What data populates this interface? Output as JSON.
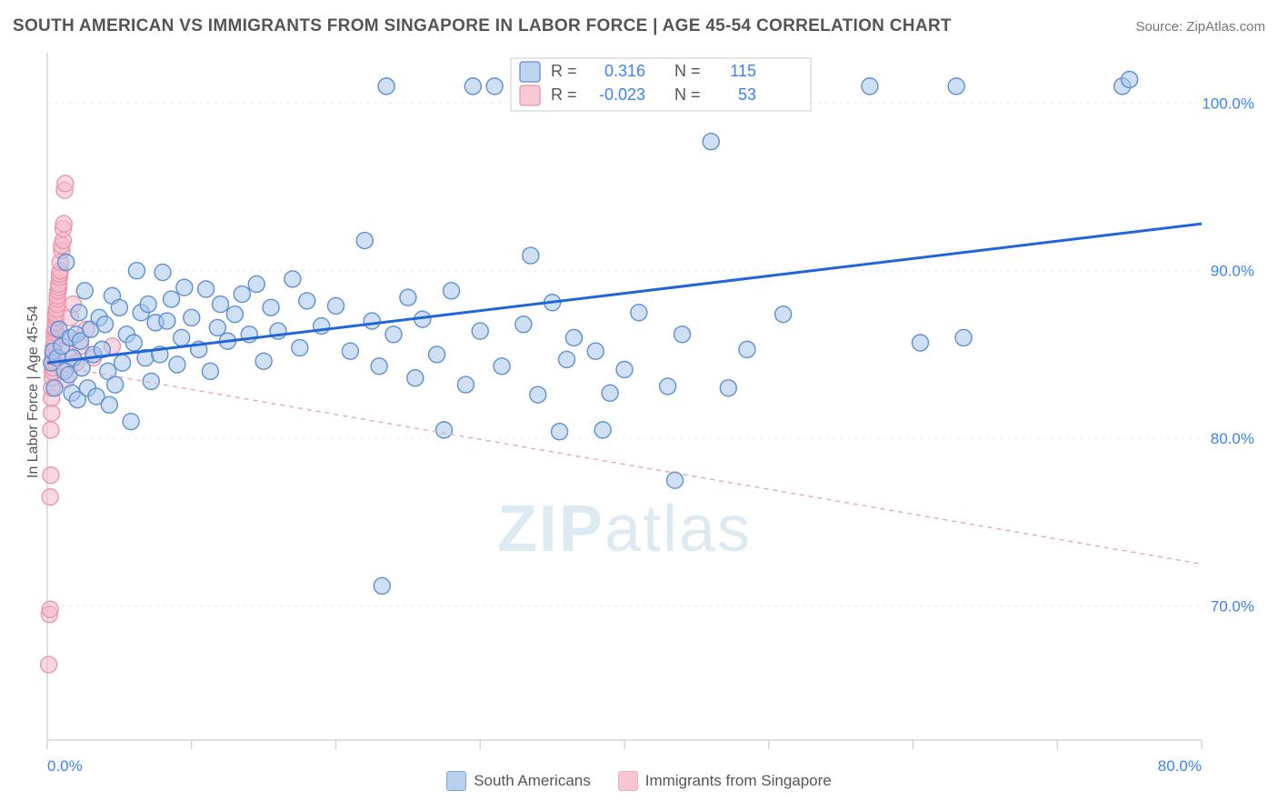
{
  "title": "SOUTH AMERICAN VS IMMIGRANTS FROM SINGAPORE IN LABOR FORCE | AGE 45-54 CORRELATION CHART",
  "source": "Source: ZipAtlas.com",
  "y_axis_label": "In Labor Force | Age 45-54",
  "watermark": "ZIPatlas",
  "chart": {
    "type": "scatter-with-regression",
    "background_color": "#ffffff",
    "grid_color": "#e8e8e8",
    "grid_dash": "3,5",
    "border_color": "#cccccc",
    "xlim": [
      0,
      80
    ],
    "ylim": [
      62,
      103
    ],
    "x_ticks": [
      0,
      10,
      20,
      30,
      40,
      50,
      60,
      70,
      80
    ],
    "x_tick_labels": {
      "0": "0.0%",
      "80": "80.0%"
    },
    "x_tick_color": "#3b82f6",
    "y_ticks": [
      70,
      80,
      90,
      100
    ],
    "y_tick_labels": {
      "70": "70.0%",
      "80": "80.0%",
      "90": "90.0%",
      "100": "100.0%"
    },
    "y_tick_color": "#3b82f6",
    "tick_fontsize": 17,
    "marker_radius": 9,
    "marker_stroke_width": 1.4,
    "series": [
      {
        "id": "south_americans",
        "label": "South Americans",
        "fill": "#a8c6ec",
        "fill_opacity": 0.55,
        "stroke": "#5d8fd3",
        "R": "0.316",
        "N": "115",
        "regression": {
          "x1": 0,
          "y1": 84.5,
          "x2": 80,
          "y2": 92.8,
          "stroke": "#2066d8",
          "width": 3,
          "dash": ""
        },
        "points": [
          [
            0.3,
            84.5
          ],
          [
            0.4,
            85.2
          ],
          [
            0.5,
            83
          ],
          [
            0.7,
            84.8
          ],
          [
            0.8,
            86.5
          ],
          [
            1,
            85.5
          ],
          [
            1.2,
            84
          ],
          [
            1.3,
            90.5
          ],
          [
            1.5,
            83.8
          ],
          [
            1.6,
            86
          ],
          [
            1.7,
            82.7
          ],
          [
            1.8,
            84.8
          ],
          [
            2,
            86.2
          ],
          [
            2.1,
            82.3
          ],
          [
            2.2,
            87.5
          ],
          [
            2.3,
            85.8
          ],
          [
            2.4,
            84.2
          ],
          [
            2.6,
            88.8
          ],
          [
            2.8,
            83
          ],
          [
            3,
            86.5
          ],
          [
            3.2,
            85
          ],
          [
            3.4,
            82.5
          ],
          [
            3.6,
            87.2
          ],
          [
            3.8,
            85.3
          ],
          [
            4,
            86.8
          ],
          [
            4.2,
            84
          ],
          [
            4.3,
            82
          ],
          [
            4.5,
            88.5
          ],
          [
            4.7,
            83.2
          ],
          [
            5,
            87.8
          ],
          [
            5.2,
            84.5
          ],
          [
            5.5,
            86.2
          ],
          [
            5.8,
            81
          ],
          [
            6,
            85.7
          ],
          [
            6.2,
            90
          ],
          [
            6.5,
            87.5
          ],
          [
            6.8,
            84.8
          ],
          [
            7,
            88
          ],
          [
            7.2,
            83.4
          ],
          [
            7.5,
            86.9
          ],
          [
            7.8,
            85
          ],
          [
            8,
            89.9
          ],
          [
            8.3,
            87
          ],
          [
            8.6,
            88.3
          ],
          [
            9,
            84.4
          ],
          [
            9.3,
            86
          ],
          [
            9.5,
            89
          ],
          [
            10,
            87.2
          ],
          [
            10.5,
            85.3
          ],
          [
            11,
            88.9
          ],
          [
            11.3,
            84.0
          ],
          [
            11.8,
            86.6
          ],
          [
            12,
            88
          ],
          [
            12.5,
            85.8
          ],
          [
            13,
            87.4
          ],
          [
            13.5,
            88.6
          ],
          [
            14,
            86.2
          ],
          [
            14.5,
            89.2
          ],
          [
            15,
            84.6
          ],
          [
            15.5,
            87.8
          ],
          [
            16,
            86.4
          ],
          [
            17,
            89.5
          ],
          [
            17.5,
            85.4
          ],
          [
            18,
            88.2
          ],
          [
            19,
            86.7
          ],
          [
            20,
            87.9
          ],
          [
            21,
            85.2
          ],
          [
            22,
            91.8
          ],
          [
            22.5,
            87
          ],
          [
            23,
            84.3
          ],
          [
            23.2,
            71.2
          ],
          [
            23.5,
            101
          ],
          [
            24,
            86.2
          ],
          [
            25,
            88.4
          ],
          [
            25.5,
            83.6
          ],
          [
            26,
            87.1
          ],
          [
            27,
            85
          ],
          [
            27.5,
            80.5
          ],
          [
            28,
            88.8
          ],
          [
            29,
            83.2
          ],
          [
            29.5,
            101
          ],
          [
            30,
            86.4
          ],
          [
            31,
            101
          ],
          [
            31.5,
            84.3
          ],
          [
            33,
            86.8
          ],
          [
            33.5,
            90.9
          ],
          [
            34,
            82.6
          ],
          [
            34.2,
            101
          ],
          [
            35,
            88.1
          ],
          [
            35.5,
            80.4
          ],
          [
            36,
            84.7
          ],
          [
            36.5,
            86
          ],
          [
            37,
            101
          ],
          [
            38,
            85.2
          ],
          [
            38.5,
            80.5
          ],
          [
            39,
            82.7
          ],
          [
            40,
            84.1
          ],
          [
            41,
            87.5
          ],
          [
            43,
            83.1
          ],
          [
            43.5,
            77.5
          ],
          [
            44,
            86.2
          ],
          [
            46,
            97.7
          ],
          [
            47.2,
            83
          ],
          [
            48.5,
            85.3
          ],
          [
            51,
            87.4
          ],
          [
            57,
            101
          ],
          [
            60.5,
            85.7
          ],
          [
            63,
            101
          ],
          [
            63.5,
            86
          ],
          [
            74.5,
            101
          ],
          [
            75,
            101.4
          ]
        ]
      },
      {
        "id": "immigrants_singapore",
        "label": "Immigrants from Singapore",
        "fill": "#f5b8c8",
        "fill_opacity": 0.55,
        "stroke": "#e997b0",
        "R": "-0.023",
        "N": "53",
        "regression": {
          "x1": 0,
          "y1": 84.4,
          "x2": 80,
          "y2": 72.5,
          "stroke": "#eaa6b9",
          "width": 1.4,
          "dash": "5,5"
        },
        "points": [
          [
            0.1,
            66.5
          ],
          [
            0.15,
            69.5
          ],
          [
            0.2,
            69.8
          ],
          [
            0.2,
            76.5
          ],
          [
            0.25,
            77.8
          ],
          [
            0.25,
            80.5
          ],
          [
            0.3,
            81.5
          ],
          [
            0.3,
            82.4
          ],
          [
            0.3,
            83
          ],
          [
            0.35,
            83.6
          ],
          [
            0.35,
            84
          ],
          [
            0.4,
            84.2
          ],
          [
            0.4,
            84.6
          ],
          [
            0.4,
            85
          ],
          [
            0.45,
            85.2
          ],
          [
            0.45,
            85.5
          ],
          [
            0.5,
            85.7
          ],
          [
            0.5,
            86
          ],
          [
            0.5,
            86.3
          ],
          [
            0.55,
            86.5
          ],
          [
            0.55,
            86.6
          ],
          [
            0.6,
            86.9
          ],
          [
            0.6,
            87.2
          ],
          [
            0.6,
            87.4
          ],
          [
            0.65,
            87.7
          ],
          [
            0.7,
            88
          ],
          [
            0.7,
            88.3
          ],
          [
            0.7,
            88.5
          ],
          [
            0.75,
            88.8
          ],
          [
            0.8,
            89
          ],
          [
            0.8,
            89.2
          ],
          [
            0.85,
            89.6
          ],
          [
            0.85,
            89.8
          ],
          [
            0.9,
            90
          ],
          [
            0.9,
            90.5
          ],
          [
            1,
            91.2
          ],
          [
            1,
            91.5
          ],
          [
            1.1,
            91.8
          ],
          [
            1.1,
            92.5
          ],
          [
            1.15,
            92.8
          ],
          [
            1.2,
            94.8
          ],
          [
            1.25,
            95.2
          ],
          [
            1.3,
            83.5
          ],
          [
            1.35,
            84.2
          ],
          [
            1.4,
            85.1
          ],
          [
            1.5,
            86
          ],
          [
            1.6,
            87.2
          ],
          [
            1.8,
            88
          ],
          [
            2,
            84.5
          ],
          [
            2.3,
            85.5
          ],
          [
            2.7,
            86.5
          ],
          [
            3.2,
            84.8
          ],
          [
            4.5,
            85.5
          ]
        ]
      }
    ],
    "stat_box": {
      "border_color": "#cccccc",
      "bg": "#ffffff",
      "label_color": "#555555",
      "value_color": "#3b82f6"
    },
    "legend_bottom": {
      "fontsize": 17,
      "text_color": "#555555"
    }
  }
}
